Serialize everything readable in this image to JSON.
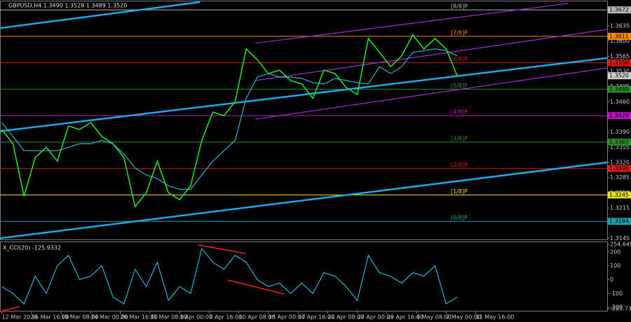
{
  "chart_data": [
    {
      "type": "line",
      "title": "GBPUSD,H4  1.3490 1.3528 1.3489 1.3520",
      "x": [
        0,
        6,
        12,
        18,
        24,
        30,
        36,
        42,
        48,
        54,
        60,
        66,
        72,
        78,
        84,
        90,
        96,
        102,
        108,
        114,
        120,
        126,
        132,
        138,
        144,
        150,
        156,
        162,
        168,
        174,
        180,
        186,
        192,
        198,
        204,
        210,
        216,
        222,
        228,
        234,
        240,
        246
      ],
      "series": [
        {
          "color": "#22e022",
          "values": [
            1.3396,
            1.3363,
            1.3242,
            1.3331,
            1.3355,
            1.3323,
            1.3404,
            1.3396,
            1.3412,
            1.338,
            1.3363,
            1.3331,
            1.3218,
            1.325,
            1.3323,
            1.325,
            1.3234,
            1.3266,
            1.3371,
            1.3436,
            1.3428,
            1.346,
            1.3582,
            1.3557,
            1.3525,
            1.3533,
            1.3509,
            1.3501,
            1.3468,
            1.3533,
            1.3525,
            1.3493,
            1.3477,
            1.3606,
            1.3574,
            1.3541,
            1.3566,
            1.3614,
            1.3582,
            1.3606,
            1.3582,
            1.352
          ]
        },
        {
          "color": "#2ab4c8",
          "values": [
            1.3412,
            1.338,
            1.3347,
            1.3347,
            1.3347,
            1.3347,
            1.3355,
            1.3363,
            1.3363,
            1.3371,
            1.3363,
            1.3339,
            1.3307,
            1.3291,
            1.3283,
            1.3266,
            1.3258,
            1.3258,
            1.3291,
            1.3323,
            1.3347,
            1.3371,
            1.3468,
            1.3517,
            1.3525,
            1.3517,
            1.3517,
            1.3514,
            1.3504,
            1.3501,
            1.3514,
            1.3509,
            1.3504,
            1.3501,
            1.3541,
            1.3525,
            1.3541,
            1.3574,
            1.3578,
            1.3582,
            1.3578,
            1.3566
          ]
        }
      ],
      "xlim": [
        -1,
        327
      ],
      "xticks": [
        {
          "value": 0,
          "label": "12 Mar 2026"
        },
        {
          "value": 16,
          "label": "16 Mar 16:00"
        },
        {
          "value": 32,
          "label": "19 Mar 08:00"
        },
        {
          "value": 48,
          "label": "24 Mar 00:00"
        },
        {
          "value": 64,
          "label": "26 Mar 16:00"
        },
        {
          "value": 80,
          "label": "31 Mar 08:00"
        },
        {
          "value": 96,
          "label": "3 Apr 00:00"
        },
        {
          "value": 112,
          "label": "7 Apr 16:00"
        },
        {
          "value": 128,
          "label": "10 Apr 08:00"
        },
        {
          "value": 144,
          "label": "15 Apr 00:00"
        },
        {
          "value": 160,
          "label": "17 Apr 16:00"
        },
        {
          "value": 176,
          "label": "22 Apr 08:00"
        },
        {
          "value": 192,
          "label": "27 Apr 00:00"
        },
        {
          "value": 208,
          "label": "29 Apr 16:00"
        },
        {
          "value": 224,
          "label": "4 May 08:00"
        },
        {
          "value": 240,
          "label": "7 May 00:00"
        },
        {
          "value": 256,
          "label": "11 May 16:00"
        }
      ],
      "ylim": [
        1.3144,
        1.369
      ],
      "yticks": [
        1.3635,
        {
          "value": 1.36,
          "label": "1.3600"
        },
        1.3565,
        {
          "value": 1.353,
          "label": "1.3530"
        },
        1.3495,
        {
          "value": 1.346,
          "label": "1.3460"
        },
        1.3425,
        {
          "value": 1.339,
          "label": "1.3390"
        },
        1.3355,
        {
          "value": 1.332,
          "label": "1.3320"
        },
        1.3285,
        {
          "value": 1.325,
          "label": "1.3250"
        },
        1.3215,
        {
          "value": 1.318,
          "label": "1.3180"
        },
        1.3145
      ],
      "levels": [
        {
          "name": "[8/8]P",
          "value": 1.3672,
          "label": "1.3672",
          "color": "#b8b8b8"
        },
        {
          "name": "[7/8]P",
          "value": 1.3611,
          "label": "1.3611",
          "color": "#ff8c00"
        },
        {
          "name": "[6/8]P",
          "value": 1.355,
          "label": "1.3550",
          "color": "#d41a1a"
        },
        {
          "name": "[5/8]P",
          "value": 1.3489,
          "label": "1.3489",
          "color": "#2e8b2e"
        },
        {
          "name": "[4/8]P",
          "value": 1.3428,
          "label": "1.3428",
          "color": "#c010c0"
        },
        {
          "name": "[3/8]P",
          "value": 1.3367,
          "label": "1.3367",
          "color": "#2e8b2e"
        },
        {
          "name": "[2/8]P",
          "value": 1.3306,
          "label": "1.3306",
          "color": "#d41a1a"
        },
        {
          "name": "[1/8]P",
          "value": 1.3245,
          "label": "1.3245",
          "color": "#e8e020"
        },
        {
          "name": "[0/8]P",
          "value": 1.3184,
          "label": "1.3184",
          "color": "#20a0a8"
        }
      ],
      "last_price": {
        "value": 1.352,
        "label": "1.3520"
      },
      "trendlines": [
        {
          "color": "#1ea8e8",
          "x": [
            -1,
            327
          ],
          "y": [
            1.3392,
            1.3561
          ]
        },
        {
          "color": "#1ea8e8",
          "x": [
            -1,
            327
          ],
          "y": [
            1.3145,
            1.332
          ]
        },
        {
          "color": "#1ea8e8",
          "x": [
            -1,
            107
          ],
          "y": [
            1.363,
            1.369
          ]
        },
        {
          "color": "#9a30d8",
          "x": [
            137,
            306
          ],
          "y": [
            1.3595,
            1.3687
          ]
        },
        {
          "color": "#9a30d8",
          "x": [
            137,
            327
          ],
          "y": [
            1.3509,
            1.3627
          ]
        },
        {
          "color": "#9a30d8",
          "x": [
            137,
            327
          ],
          "y": [
            1.342,
            1.3538
          ]
        }
      ]
    },
    {
      "type": "line",
      "title": "X_CCI(20) -125.9332",
      "x": [
        0,
        6,
        12,
        18,
        24,
        30,
        36,
        42,
        48,
        54,
        60,
        66,
        72,
        78,
        84,
        90,
        96,
        102,
        108,
        114,
        120,
        126,
        132,
        138,
        144,
        150,
        156,
        162,
        168,
        174,
        180,
        186,
        192,
        198,
        204,
        210,
        216,
        222,
        228,
        234,
        240,
        246
      ],
      "series": [
        {
          "color": "#2ab4c8",
          "values": [
            -50,
            -100,
            -175,
            25,
            -100,
            100,
            175,
            0,
            25,
            100,
            -125,
            -175,
            75,
            -50,
            125,
            -150,
            -50,
            -100,
            225,
            125,
            75,
            175,
            125,
            0,
            -50,
            -25,
            -100,
            -25,
            -100,
            50,
            25,
            -50,
            -150,
            175,
            50,
            25,
            -25,
            50,
            25,
            100,
            -175,
            -125.9332
          ]
        }
      ],
      "xlim": [
        -1,
        327
      ],
      "ylim": [
        -209.733,
        254.6495
      ],
      "yticks": [
        254.6495,
        200,
        100,
        0,
        -100,
        -200,
        -209.733
      ]
    }
  ]
}
